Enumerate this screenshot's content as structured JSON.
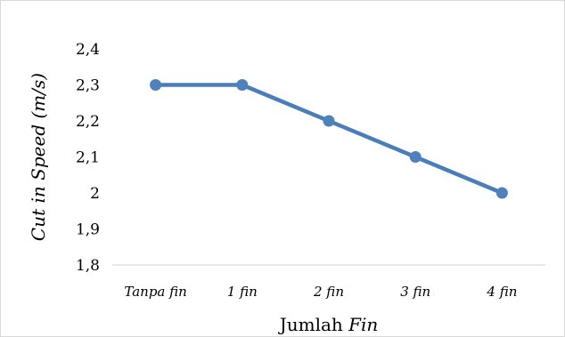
{
  "chart_data": {
    "type": "line",
    "categories": [
      "Tanpa fin",
      "1 fin",
      "2 fin",
      "3 fin",
      "4 fin"
    ],
    "series": [
      {
        "values": [
          2.3,
          2.3,
          2.2,
          2.1,
          2.0
        ]
      }
    ],
    "y_tick_labels": [
      "1,8",
      "1,9",
      "2",
      "2,1",
      "2,2",
      "2,3",
      "2,4"
    ],
    "y_ticks": [
      1.8,
      1.9,
      2.0,
      2.1,
      2.2,
      2.3,
      2.4
    ],
    "ylim": [
      1.8,
      2.4
    ],
    "xlabel_plain": "Jumlah ",
    "xlabel_italic": "Fin",
    "ylabel": "Cut in Speed (m/s)",
    "grid": false,
    "legend": "none",
    "line_color": "#4a7ebb",
    "marker_color": "#4f81bd"
  }
}
